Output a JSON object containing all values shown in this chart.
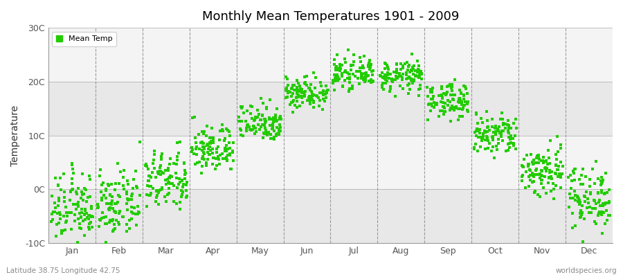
{
  "title": "Monthly Mean Temperatures 1901 - 2009",
  "ylabel": "Temperature",
  "xlabel_labels": [
    "Jan",
    "Feb",
    "Mar",
    "Apr",
    "May",
    "Jun",
    "Jul",
    "Aug",
    "Sep",
    "Oct",
    "Nov",
    "Dec"
  ],
  "footnote_left": "Latitude 38.75 Longitude 42.75",
  "footnote_right": "worldspecies.org",
  "ylim": [
    -10,
    30
  ],
  "ytick_labels": [
    "-10C",
    "0C",
    "10C",
    "20C",
    "30C"
  ],
  "ytick_values": [
    -10,
    0,
    10,
    20,
    30
  ],
  "marker_color": "#22cc00",
  "background_color": "#ffffff",
  "plot_bg_color": "#ffffff",
  "band_color_dark": "#e8e8e8",
  "band_color_light": "#f4f4f4",
  "legend_label": "Mean Temp",
  "years": 109,
  "monthly_means": [
    -3.5,
    -3.0,
    1.5,
    7.5,
    12.5,
    18.0,
    21.5,
    21.0,
    16.5,
    10.0,
    3.5,
    -1.5
  ],
  "monthly_stds": [
    3.2,
    3.0,
    2.8,
    2.2,
    1.8,
    1.5,
    1.3,
    1.4,
    1.6,
    2.0,
    2.5,
    3.0
  ]
}
